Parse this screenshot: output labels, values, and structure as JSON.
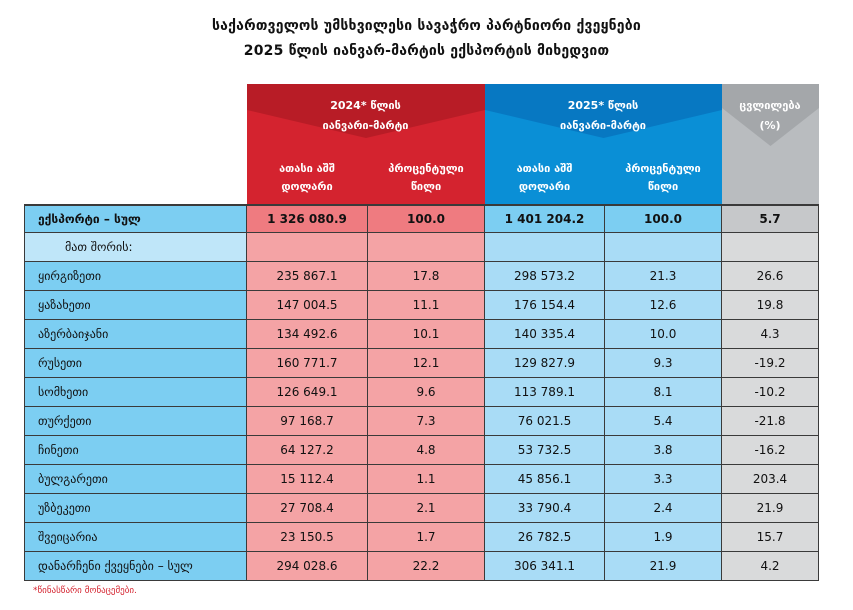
{
  "title_line1": "საქართველოს უმსხვილესი სავაჭრო პარტნიორი ქვეყნები",
  "title_line2": "2025 წლის იანვარ-მარტის ექსპორტის მიხედვით",
  "header": {
    "year2024": "2024* წლის",
    "year2025": "2025* წლის",
    "period": "იანვარი-მარტი",
    "change_line1": "ცვლილება",
    "change_line2": "(%)",
    "thousand_usd_line1": "ათასი აშშ",
    "thousand_usd_line2": "დოლარი",
    "percent_share_line1": "პროცენტული",
    "percent_share_line2": "წილი"
  },
  "total": {
    "name": "ექსპორტი – სულ",
    "v2024": "1 326 080.9",
    "s2024": "100.0",
    "v2025": "1 401 204.2",
    "s2025": "100.0",
    "change": "5.7"
  },
  "including_label": "მათ შორის:",
  "rows": [
    {
      "name": "ყირგიზეთი",
      "v2024": "235 867.1",
      "s2024": "17.8",
      "v2025": "298 573.2",
      "s2025": "21.3",
      "change": "26.6"
    },
    {
      "name": "ყაზახეთი",
      "v2024": "147 004.5",
      "s2024": "11.1",
      "v2025": "176 154.4",
      "s2025": "12.6",
      "change": "19.8"
    },
    {
      "name": "აზერბაიჯანი",
      "v2024": "134 492.6",
      "s2024": "10.1",
      "v2025": "140 335.4",
      "s2025": "10.0",
      "change": "4.3"
    },
    {
      "name": "რუსეთი",
      "v2024": "160 771.7",
      "s2024": "12.1",
      "v2025": "129 827.9",
      "s2025": "9.3",
      "change": "-19.2"
    },
    {
      "name": "სომხეთი",
      "v2024": "126 649.1",
      "s2024": "9.6",
      "v2025": "113 789.1",
      "s2025": "8.1",
      "change": "-10.2"
    },
    {
      "name": "თურქეთი",
      "v2024": "97 168.7",
      "s2024": "7.3",
      "v2025": "76 021.5",
      "s2025": "5.4",
      "change": "-21.8"
    },
    {
      "name": "ჩინეთი",
      "v2024": "64 127.2",
      "s2024": "4.8",
      "v2025": "53 732.5",
      "s2025": "3.8",
      "change": "-16.2"
    },
    {
      "name": "ბულგარეთი",
      "v2024": "15 112.4",
      "s2024": "1.1",
      "v2025": "45 856.1",
      "s2025": "3.3",
      "change": "203.4"
    },
    {
      "name": "უზბეკეთი",
      "v2024": "27 708.4",
      "s2024": "2.1",
      "v2025": "33 790.4",
      "s2025": "2.4",
      "change": "21.9"
    },
    {
      "name": "შვეიცარია",
      "v2024": "23 150.5",
      "s2024": "1.7",
      "v2025": "26 782.5",
      "s2025": "1.9",
      "change": "15.7"
    }
  ],
  "other": {
    "name": "დანარჩენი ქვეყნები – სულ",
    "v2024": "294 028.6",
    "s2024": "22.2",
    "v2025": "306 341.1",
    "s2025": "21.9",
    "change": "4.2"
  },
  "footnote": "*წინასწარი მონაცემები.",
  "colors": {
    "red_header": "#d4232f",
    "blue_header": "#0a8fd6",
    "grey_header": "#b9bcbf",
    "red_cell": "#f4a3a5",
    "blue_cell": "#a9dcf6",
    "grey_cell": "#d9dadb",
    "footnote": "#d4232f"
  }
}
